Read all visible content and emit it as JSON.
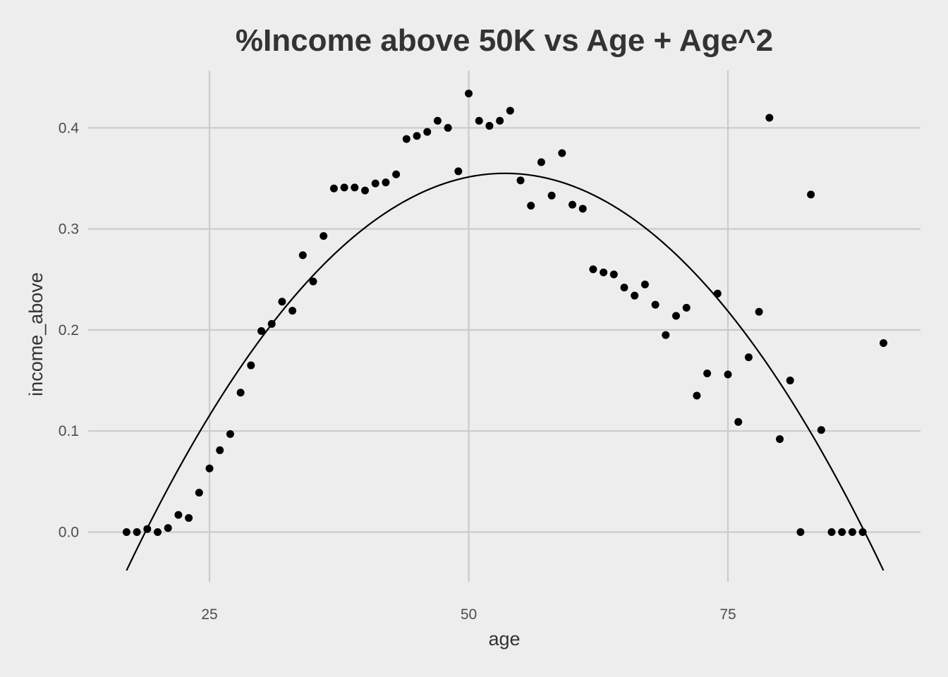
{
  "chart_data": {
    "type": "scatter",
    "title": "%Income above 50K vs Age + Age^2",
    "xlabel": "age",
    "ylabel": "income_above",
    "xlim": [
      12,
      94
    ],
    "ylim": [
      -0.05,
      0.45
    ],
    "x_ticks": [
      25,
      50,
      75
    ],
    "x_tick_labels": [
      "25",
      "50",
      "75"
    ],
    "y_ticks": [
      0.0,
      0.1,
      0.2,
      0.3,
      0.4
    ],
    "y_tick_labels": [
      "0.0",
      "0.1",
      "0.2",
      "0.3",
      "0.4"
    ],
    "grid": true,
    "legend": "none",
    "colors": {
      "background": "#ededed",
      "grid": "#cbcbcb",
      "points": "#000000",
      "line": "#000000"
    },
    "series": [
      {
        "kind": "points",
        "x": [
          17,
          18,
          19,
          20,
          21,
          22,
          23,
          24,
          25,
          26,
          27,
          28,
          29,
          30,
          31,
          32,
          33,
          34,
          35,
          36,
          37,
          38,
          39,
          40,
          41,
          42,
          43,
          44,
          45,
          46,
          47,
          48,
          49,
          50,
          51,
          52,
          53,
          54,
          55,
          56,
          57,
          58,
          59,
          60,
          61,
          62,
          63,
          64,
          65,
          66,
          67,
          68,
          69,
          70,
          71,
          72,
          73,
          74,
          75,
          76,
          77,
          78,
          79,
          80,
          81,
          82,
          83,
          84,
          85,
          86,
          87,
          88,
          90
        ],
        "y": [
          0.0,
          0.0,
          0.003,
          0.0,
          0.004,
          0.017,
          0.014,
          0.039,
          0.063,
          0.081,
          0.097,
          0.138,
          0.165,
          0.199,
          0.206,
          0.228,
          0.219,
          0.274,
          0.248,
          0.293,
          0.34,
          0.341,
          0.341,
          0.338,
          0.345,
          0.346,
          0.354,
          0.389,
          0.392,
          0.396,
          0.407,
          0.4,
          0.357,
          0.434,
          0.407,
          0.402,
          0.407,
          0.417,
          0.348,
          0.323,
          0.366,
          0.333,
          0.375,
          0.324,
          0.32,
          0.26,
          0.257,
          0.255,
          0.242,
          0.234,
          0.245,
          0.225,
          0.195,
          0.214,
          0.222,
          0.135,
          0.157,
          0.236,
          0.156,
          0.109,
          0.173,
          0.218,
          0.41,
          0.092,
          0.15,
          0.0,
          0.334,
          0.101,
          0.0,
          0.0,
          0.0,
          0.0,
          0.187
        ]
      },
      {
        "kind": "fit-line",
        "x_range": [
          17,
          90
        ],
        "vertex_x": 53.5,
        "vertex_y": 0.355,
        "y_at_x17": -0.038
      }
    ]
  }
}
